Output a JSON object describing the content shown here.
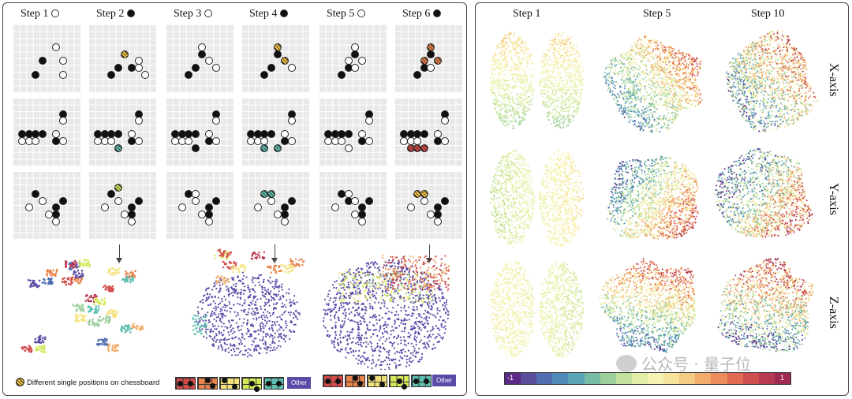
{
  "colors": {
    "panel_border": "#444444",
    "board_bg": "#e9e9e9",
    "other_chip": "#5b4aa8",
    "spectral": [
      "#5b2a86",
      "#5a4d9a",
      "#4f6db0",
      "#4d8ab8",
      "#5aa5b5",
      "#78bba6",
      "#9dcf9c",
      "#c3e29e",
      "#e3efa8",
      "#f5f2b4",
      "#f7e49c",
      "#f5cc85",
      "#f2ad6c",
      "#ea8d5b",
      "#e06b52",
      "#cf4f4f",
      "#b83a52",
      "#9e2a52"
    ]
  },
  "left": {
    "steps": [
      {
        "label": "Step 1",
        "stone": "white"
      },
      {
        "label": "Step 2",
        "stone": "black"
      },
      {
        "label": "Step 3",
        "stone": "white"
      },
      {
        "label": "Step 4",
        "stone": "black"
      },
      {
        "label": "Step 5",
        "stone": "white"
      },
      {
        "label": "Step 6",
        "stone": "black"
      }
    ],
    "rows": [
      [
        [
          [
            "w",
            5,
            2
          ],
          [
            "b",
            3,
            4
          ],
          [
            "w",
            6,
            4
          ],
          [
            "b",
            2,
            6
          ],
          [
            "w",
            6,
            6
          ]
        ],
        [
          [
            "hy",
            4,
            3
          ],
          [
            "w",
            6,
            4
          ],
          [
            "b",
            3,
            5
          ],
          [
            "b",
            5,
            5
          ],
          [
            "w",
            6,
            5
          ],
          [
            "b",
            2,
            6
          ],
          [
            "w",
            7,
            6
          ]
        ],
        [
          [
            "w",
            4,
            2
          ],
          [
            "b",
            4,
            3
          ],
          [
            "w",
            5,
            4
          ],
          [
            "b",
            3,
            5
          ],
          [
            "w",
            6,
            5
          ],
          [
            "b",
            2,
            6
          ]
        ],
        [
          [
            "hy",
            4,
            2
          ],
          [
            "b",
            4,
            3
          ],
          [
            "hy",
            5,
            4
          ],
          [
            "b",
            3,
            5
          ],
          [
            "w",
            6,
            5
          ],
          [
            "b",
            2,
            6
          ]
        ],
        [
          [
            "w",
            4,
            2
          ],
          [
            "b",
            4,
            3
          ],
          [
            "w",
            3,
            4
          ],
          [
            "w",
            5,
            4
          ],
          [
            "b",
            3,
            5
          ],
          [
            "w",
            4,
            5
          ],
          [
            "b",
            2,
            6
          ]
        ],
        [
          [
            "ho",
            4,
            2
          ],
          [
            "b",
            4,
            3
          ],
          [
            "ho",
            3,
            4
          ],
          [
            "ho",
            5,
            4
          ],
          [
            "b",
            3,
            5
          ],
          [
            "w",
            4,
            5
          ],
          [
            "b",
            2,
            6
          ]
        ]
      ],
      [
        [
          [
            "b",
            6,
            1
          ],
          [
            "w",
            6,
            2
          ],
          [
            "b",
            0,
            4
          ],
          [
            "b",
            1,
            4
          ],
          [
            "b",
            2,
            4
          ],
          [
            "b",
            3,
            4
          ],
          [
            "w",
            5,
            4
          ],
          [
            "w",
            0,
            5
          ],
          [
            "w",
            1,
            5
          ],
          [
            "w",
            2,
            5
          ],
          [
            "b",
            5,
            5
          ],
          [
            "w",
            6,
            5
          ]
        ],
        [
          [
            "b",
            6,
            1
          ],
          [
            "w",
            6,
            2
          ],
          [
            "b",
            0,
            4
          ],
          [
            "b",
            1,
            4
          ],
          [
            "b",
            2,
            4
          ],
          [
            "b",
            3,
            4
          ],
          [
            "w",
            5,
            4
          ],
          [
            "w",
            0,
            5
          ],
          [
            "w",
            1,
            5
          ],
          [
            "w",
            2,
            5
          ],
          [
            "b",
            5,
            5
          ],
          [
            "w",
            6,
            5
          ],
          [
            "hc",
            3,
            6
          ]
        ],
        [
          [
            "b",
            6,
            1
          ],
          [
            "w",
            6,
            2
          ],
          [
            "b",
            0,
            4
          ],
          [
            "b",
            1,
            4
          ],
          [
            "b",
            2,
            4
          ],
          [
            "b",
            3,
            4
          ],
          [
            "w",
            5,
            4
          ],
          [
            "w",
            0,
            5
          ],
          [
            "w",
            1,
            5
          ],
          [
            "w",
            2,
            5
          ],
          [
            "b",
            5,
            5
          ],
          [
            "w",
            6,
            5
          ],
          [
            "b",
            3,
            6
          ]
        ],
        [
          [
            "b",
            6,
            1
          ],
          [
            "w",
            6,
            2
          ],
          [
            "b",
            0,
            4
          ],
          [
            "b",
            1,
            4
          ],
          [
            "b",
            2,
            4
          ],
          [
            "b",
            3,
            4
          ],
          [
            "w",
            5,
            4
          ],
          [
            "w",
            0,
            5
          ],
          [
            "w",
            1,
            5
          ],
          [
            "w",
            2,
            5
          ],
          [
            "b",
            5,
            5
          ],
          [
            "w",
            6,
            5
          ],
          [
            "hc",
            2,
            6
          ],
          [
            "hc",
            4,
            6
          ]
        ],
        [
          [
            "b",
            6,
            1
          ],
          [
            "w",
            6,
            2
          ],
          [
            "b",
            0,
            4
          ],
          [
            "b",
            1,
            4
          ],
          [
            "b",
            2,
            4
          ],
          [
            "b",
            3,
            4
          ],
          [
            "w",
            5,
            4
          ],
          [
            "w",
            0,
            5
          ],
          [
            "w",
            1,
            5
          ],
          [
            "w",
            2,
            5
          ],
          [
            "b",
            5,
            5
          ],
          [
            "w",
            6,
            5
          ],
          [
            "w",
            3,
            6
          ]
        ],
        [
          [
            "b",
            6,
            1
          ],
          [
            "w",
            6,
            2
          ],
          [
            "b",
            0,
            4
          ],
          [
            "b",
            1,
            4
          ],
          [
            "b",
            2,
            4
          ],
          [
            "b",
            3,
            4
          ],
          [
            "w",
            5,
            4
          ],
          [
            "w",
            0,
            5
          ],
          [
            "w",
            1,
            5
          ],
          [
            "w",
            2,
            5
          ],
          [
            "b",
            5,
            5
          ],
          [
            "w",
            6,
            5
          ],
          [
            "hr",
            1,
            6
          ],
          [
            "hr",
            2,
            6
          ],
          [
            "hr",
            3,
            6
          ]
        ]
      ],
      [
        [
          [
            "b",
            2,
            2
          ],
          [
            "w",
            3,
            3
          ],
          [
            "b",
            6,
            3
          ],
          [
            "w",
            1,
            4
          ],
          [
            "b",
            5,
            4
          ],
          [
            "w",
            4,
            5
          ],
          [
            "b",
            5,
            5
          ],
          [
            "w",
            5,
            6
          ]
        ],
        [
          [
            "hl",
            3,
            1
          ],
          [
            "b",
            2,
            2
          ],
          [
            "w",
            3,
            3
          ],
          [
            "b",
            6,
            3
          ],
          [
            "w",
            1,
            4
          ],
          [
            "b",
            5,
            4
          ],
          [
            "w",
            4,
            5
          ],
          [
            "b",
            5,
            5
          ],
          [
            "w",
            5,
            6
          ]
        ],
        [
          [
            "w",
            3,
            2
          ],
          [
            "b",
            2,
            2
          ],
          [
            "w",
            3,
            3
          ],
          [
            "b",
            6,
            3
          ],
          [
            "w",
            1,
            4
          ],
          [
            "b",
            5,
            4
          ],
          [
            "w",
            4,
            5
          ],
          [
            "b",
            5,
            5
          ],
          [
            "w",
            5,
            6
          ]
        ],
        [
          [
            "hc",
            2,
            2
          ],
          [
            "hc",
            3,
            2
          ],
          [
            "w",
            3,
            3
          ],
          [
            "b",
            6,
            3
          ],
          [
            "w",
            1,
            4
          ],
          [
            "b",
            5,
            4
          ],
          [
            "w",
            4,
            5
          ],
          [
            "b",
            5,
            5
          ],
          [
            "w",
            5,
            6
          ]
        ],
        [
          [
            "w",
            3,
            2
          ],
          [
            "b",
            2,
            2
          ],
          [
            "b",
            3,
            3
          ],
          [
            "w",
            4,
            3
          ],
          [
            "b",
            6,
            3
          ],
          [
            "w",
            1,
            4
          ],
          [
            "b",
            5,
            4
          ],
          [
            "w",
            4,
            5
          ],
          [
            "b",
            5,
            5
          ],
          [
            "w",
            5,
            6
          ]
        ],
        [
          [
            "hy",
            2,
            2
          ],
          [
            "hy",
            3,
            2
          ],
          [
            "w",
            3,
            3
          ],
          [
            "b",
            6,
            3
          ],
          [
            "w",
            1,
            4
          ],
          [
            "b",
            5,
            4
          ],
          [
            "w",
            4,
            5
          ],
          [
            "b",
            5,
            5
          ],
          [
            "w",
            5,
            6
          ]
        ]
      ]
    ],
    "legend_text": "Different single positions on chessboard",
    "other_label": "Other"
  },
  "right": {
    "col_heads": [
      "Step 1",
      "Step 5",
      "Step 10"
    ],
    "row_labels": [
      "X-axis",
      "Y-axis",
      "Z-axis"
    ],
    "colorbar_min": "-1",
    "colorbar_max": "1"
  },
  "watermark": "公众号 · 量子位"
}
